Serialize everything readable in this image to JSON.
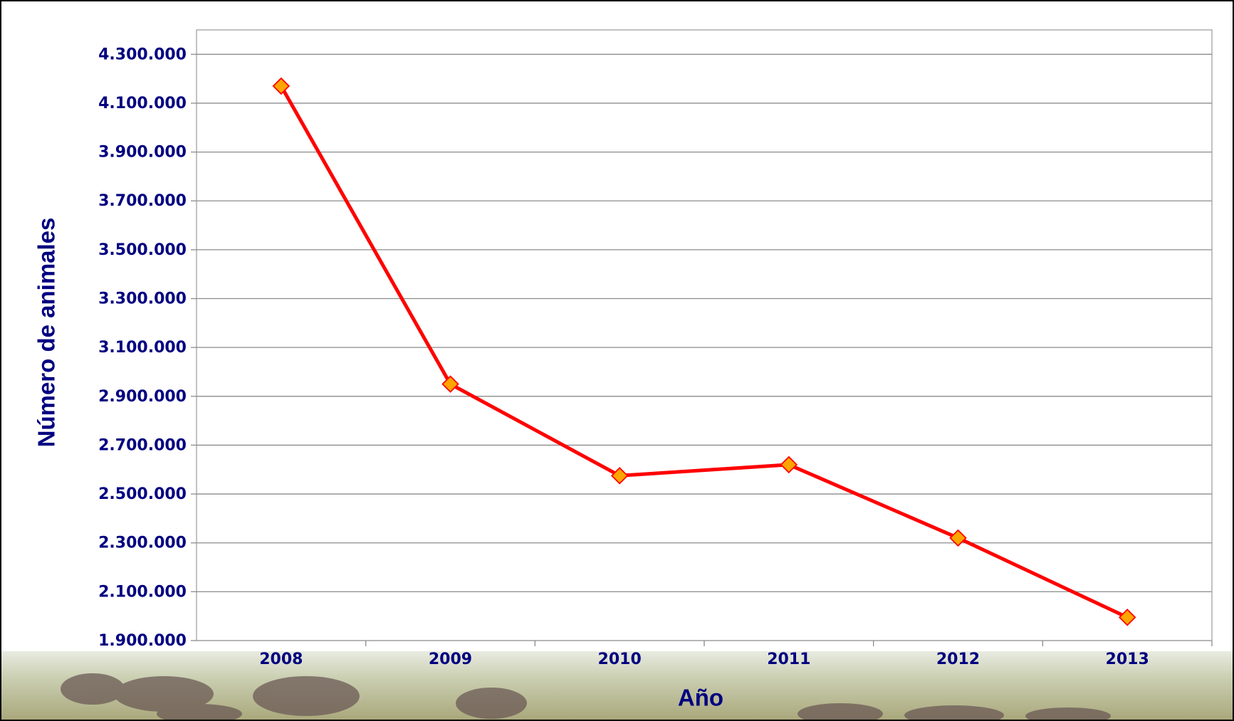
{
  "chart_data": {
    "type": "line",
    "x_label": "Año",
    "y_label": "Número de animales",
    "categories": [
      "2008",
      "2009",
      "2010",
      "2011",
      "2012",
      "2013"
    ],
    "series": [
      {
        "name": "Número de animales",
        "color": "#ff0000",
        "marker_color": "#ffa500",
        "values": [
          4170000,
          2950000,
          2575000,
          2620000,
          2320000,
          1995000
        ]
      }
    ],
    "ylim": [
      1900000,
      4400000
    ],
    "yticks": [
      {
        "value": 1900000,
        "label": "1.900.000"
      },
      {
        "value": 2100000,
        "label": "2.100.000"
      },
      {
        "value": 2300000,
        "label": "2.300.000"
      },
      {
        "value": 2500000,
        "label": "2.500.000"
      },
      {
        "value": 2700000,
        "label": "2.700.000"
      },
      {
        "value": 2900000,
        "label": "2.900.000"
      },
      {
        "value": 3100000,
        "label": "3.100.000"
      },
      {
        "value": 3300000,
        "label": "3.300.000"
      },
      {
        "value": 3500000,
        "label": "3.500.000"
      },
      {
        "value": 3700000,
        "label": "3.700.000"
      },
      {
        "value": 3900000,
        "label": "3.900.000"
      },
      {
        "value": 4100000,
        "label": "4.100.000"
      },
      {
        "value": 4300000,
        "label": "4.300.000"
      }
    ],
    "grid": true
  }
}
